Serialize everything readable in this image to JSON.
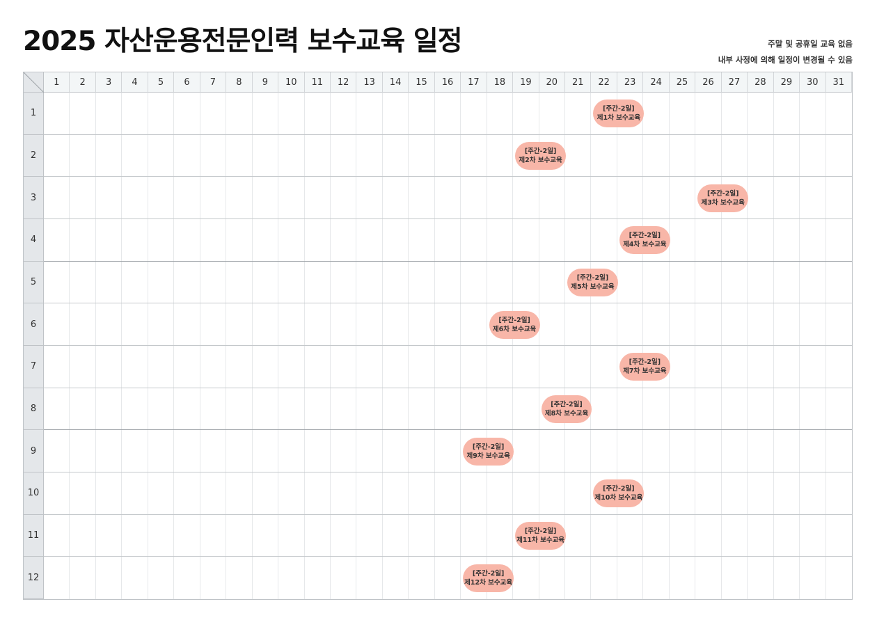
{
  "title": "2025 자산운용전문인력 보수교육 일정",
  "notes": [
    "주말 및 공휴일 교육 없음",
    "내부 사정에 의해 일정이 변경될 수 있음"
  ],
  "days": [
    1,
    2,
    3,
    4,
    5,
    6,
    7,
    8,
    9,
    10,
    11,
    12,
    13,
    14,
    15,
    16,
    17,
    18,
    19,
    20,
    21,
    22,
    23,
    24,
    25,
    26,
    27,
    28,
    29,
    30,
    31
  ],
  "months": [
    1,
    2,
    3,
    4,
    5,
    6,
    7,
    8,
    9,
    10,
    11,
    12
  ],
  "event_color": "#f8b6a8",
  "events": [
    {
      "month": 1,
      "start_day": 22,
      "end_day": 23,
      "line1": "[주간-2일]",
      "line2": "제1차 보수교육"
    },
    {
      "month": 2,
      "start_day": 19,
      "end_day": 20,
      "line1": "[주간-2일]",
      "line2": "제2차 보수교육"
    },
    {
      "month": 3,
      "start_day": 26,
      "end_day": 27,
      "line1": "[주간-2일]",
      "line2": "제3차 보수교육"
    },
    {
      "month": 4,
      "start_day": 23,
      "end_day": 24,
      "line1": "[주간-2일]",
      "line2": "제4차 보수교육"
    },
    {
      "month": 5,
      "start_day": 21,
      "end_day": 22,
      "line1": "[주간-2일]",
      "line2": "제5차 보수교육"
    },
    {
      "month": 6,
      "start_day": 18,
      "end_day": 19,
      "line1": "[주간-2일]",
      "line2": "제6차 보수교육"
    },
    {
      "month": 7,
      "start_day": 23,
      "end_day": 24,
      "line1": "[주간-2일]",
      "line2": "제7차 보수교육"
    },
    {
      "month": 8,
      "start_day": 20,
      "end_day": 21,
      "line1": "[주간-2일]",
      "line2": "제8차 보수교육"
    },
    {
      "month": 9,
      "start_day": 17,
      "end_day": 18,
      "line1": "[주간-2일]",
      "line2": "제9차 보수교육"
    },
    {
      "month": 10,
      "start_day": 22,
      "end_day": 23,
      "line1": "[주간-2일]",
      "line2": "제10차 보수교육"
    },
    {
      "month": 11,
      "start_day": 19,
      "end_day": 20,
      "line1": "[주간-2일]",
      "line2": "제11차 보수교육"
    },
    {
      "month": 12,
      "start_day": 17,
      "end_day": 18,
      "line1": "[주간-2일]",
      "line2": "제12차 보수교육"
    }
  ]
}
